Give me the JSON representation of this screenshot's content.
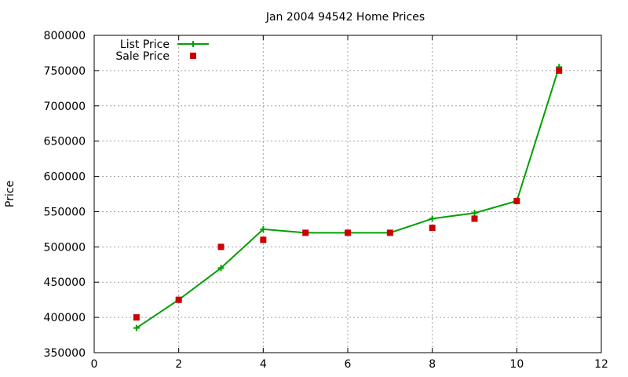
{
  "chart_data": {
    "type": "line",
    "title": "Jan 2004 94542 Home Prices",
    "xlabel": "",
    "ylabel": "Price",
    "xlim": [
      0,
      12
    ],
    "ylim": [
      350000,
      800000
    ],
    "x_ticks": [
      0,
      2,
      4,
      6,
      8,
      10,
      12
    ],
    "y_ticks": [
      350000,
      400000,
      450000,
      500000,
      550000,
      600000,
      650000,
      700000,
      750000,
      800000
    ],
    "grid": true,
    "legend_position": "top-left",
    "series": [
      {
        "name": "List Price",
        "kind": "line-with-plus-markers",
        "color": "#00a000",
        "x": [
          1,
          2,
          3,
          4,
          5,
          6,
          7,
          8,
          9,
          10,
          11
        ],
        "values": [
          385000,
          425000,
          470000,
          525000,
          520000,
          520000,
          520000,
          540000,
          548000,
          565000,
          755000
        ]
      },
      {
        "name": "Sale Price",
        "kind": "square-markers",
        "color": "#cc0000",
        "x": [
          1,
          2,
          3,
          4,
          5,
          6,
          7,
          8,
          9,
          10,
          11
        ],
        "values": [
          400000,
          425000,
          500000,
          510000,
          520000,
          520000,
          520000,
          527000,
          540000,
          565000,
          750000
        ]
      }
    ]
  }
}
